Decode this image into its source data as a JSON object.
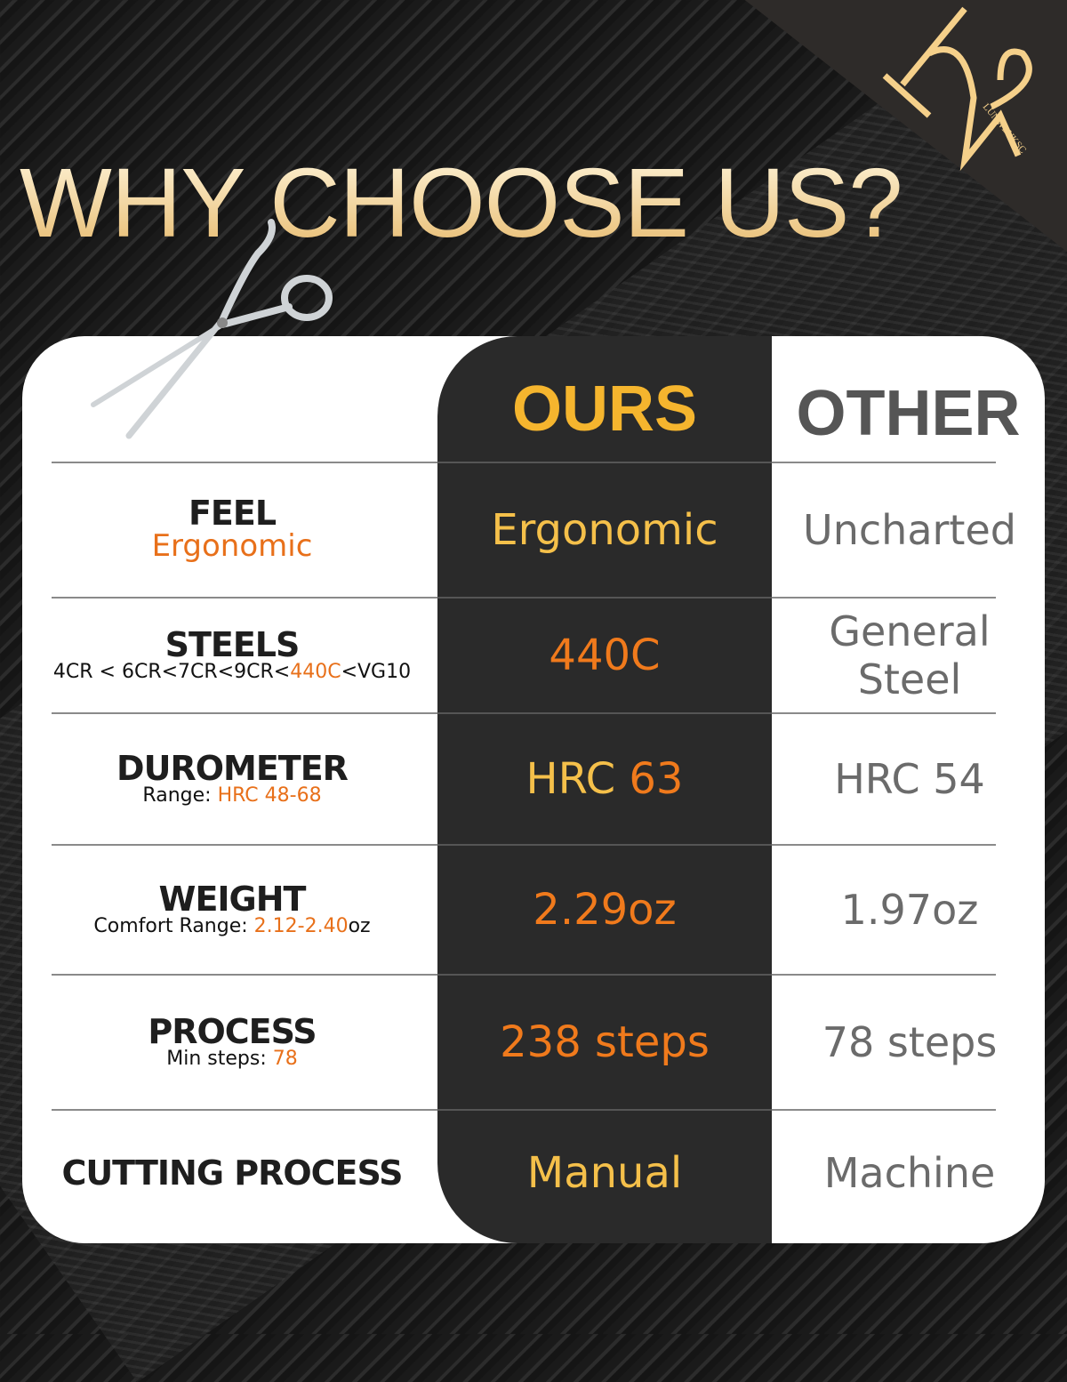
{
  "logo": {
    "text": "LUNWENKSC",
    "color": "#f5d08a"
  },
  "title": "WHY CHOOSE US?",
  "columns": {
    "ours": "OURS",
    "other": "OTHER"
  },
  "colors": {
    "gold": "#f5c04a",
    "orange": "#f07a1c",
    "gray": "#6b6b6b",
    "dark": "#2a2a2a"
  },
  "rows": [
    {
      "label": "FEEL",
      "sub_plain": "",
      "sub_highlight": "Ergonomic",
      "sub_after": "",
      "ours": "Ergonomic",
      "ours_hl": "",
      "other": "Uncharted"
    },
    {
      "label": "STEELS",
      "sub_plain": "4CR < 6CR<7CR<9CR<",
      "sub_highlight": "440C",
      "sub_after": "<VG10",
      "ours": "",
      "ours_hl": "440C",
      "other": "General Steel"
    },
    {
      "label": "DUROMETER",
      "sub_plain": "Range: ",
      "sub_highlight": "HRC 48-68",
      "sub_after": "",
      "ours": "HRC ",
      "ours_hl": "63",
      "other": "HRC 54"
    },
    {
      "label": "WEIGHT",
      "sub_plain": "Comfort Range: ",
      "sub_highlight": "2.12-2.40",
      "sub_after": "oz",
      "ours": "",
      "ours_hl": "2.29oz",
      "other": "1.97oz"
    },
    {
      "label": "PROCESS",
      "sub_plain": "Min steps: ",
      "sub_highlight": "78",
      "sub_after": "",
      "ours": "",
      "ours_hl": "238 steps",
      "other": "78 steps"
    },
    {
      "label": "CUTTING PROCESS",
      "sub_plain": "",
      "sub_highlight": "",
      "sub_after": "",
      "ours": "Manual",
      "ours_hl": "",
      "other": "Machine"
    }
  ]
}
